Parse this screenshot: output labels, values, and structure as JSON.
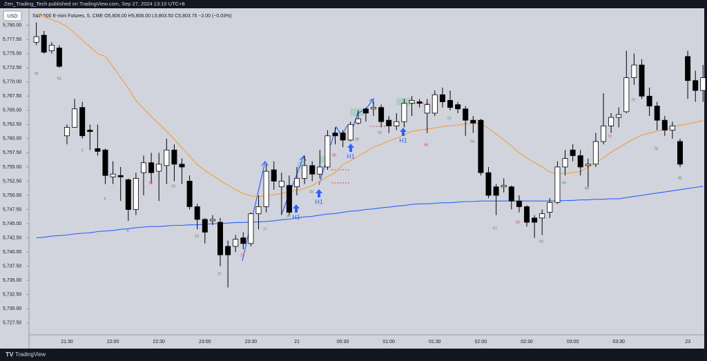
{
  "chart_data": {
    "type": "candlestick",
    "publisher": "Zen_Trading_Tech published on TradingView.com, Sep 27, 2024 13:10 UTC+8",
    "title": "S&P 500 E-mini Futures, 5, CME  O5,806.00 H5,806.00 L5,803.50 C5,803.75 −2.00 (−0.03%)",
    "currency": "USD",
    "brand": "TradingView",
    "up_color": "#ffffff",
    "down_color": "#000000",
    "categories": [
      null,
      null,
      null,
      null,
      "21:30",
      null,
      null,
      null,
      null,
      null,
      "22:00",
      null,
      null,
      null,
      null,
      null,
      "22:30",
      null,
      null,
      null,
      null,
      null,
      "23:00",
      null,
      null,
      null,
      null,
      null,
      "23:30",
      null,
      null,
      null,
      null,
      null,
      "21",
      null,
      null,
      null,
      null,
      null,
      "00:30",
      null,
      null,
      null,
      null,
      null,
      "01:00",
      null,
      null,
      null,
      null,
      null,
      "01:30",
      null,
      null,
      null,
      null,
      null,
      "02:00",
      null,
      null,
      null,
      null,
      null,
      "02:30",
      null,
      null,
      null,
      null,
      null,
      "03:00",
      null,
      null,
      null,
      null,
      null,
      "03:30",
      null,
      null,
      null,
      null,
      null,
      null,
      null,
      null,
      "23",
      null,
      null
    ],
    "open": [
      5777.0,
      5778.25,
      5775.5,
      5776.0,
      5760.5,
      5762.0,
      5765.5,
      5761.5,
      5758.25,
      5758.0,
      5753.25,
      5753.5,
      5752.75,
      5747.5,
      5754.0,
      5755.75,
      5754.25,
      5755.25,
      5758.0,
      5755.5,
      5752.5,
      5748.0,
      5745.75,
      5745.5,
      5745.25,
      5741.0,
      5741.0,
      5742.5,
      5741.5,
      5746.75,
      5748.0,
      5754.5,
      5751.5,
      5751.75,
      5751.5,
      5753.0,
      5755.25,
      5753.75,
      5755.0,
      5761.0,
      5761.0,
      5759.75,
      5762.75,
      5765.25,
      5765.25,
      5765.5,
      5763.25,
      5762.25,
      5763.0,
      5766.25,
      5766.5,
      5764.5,
      5764.5,
      5767.75,
      5766.75,
      5766.0,
      5765.25,
      5763.25,
      5763.25,
      5754.0,
      5751.5,
      5751.5,
      5751.5,
      5749.0,
      5748.0,
      5746.0,
      5746.0,
      5747.0,
      5748.75,
      5755.0,
      5758.0,
      5757.0,
      5755.25,
      5755.5,
      5759.5,
      5762.25,
      5763.75,
      5764.75,
      5770.75,
      5773.0,
      5767.5,
      5765.75,
      5763.25,
      5761.5,
      5759.5,
      5774.5,
      5770.25,
      5768.5
    ],
    "high": [
      5780.5,
      5779.0,
      5777.0,
      5776.5,
      5762.5,
      5767.0,
      5766.5,
      5762.5,
      5762.5,
      5758.25,
      5756.0,
      5755.0,
      5753.0,
      5754.0,
      5757.0,
      5757.5,
      5757.5,
      5760.0,
      5759.0,
      5756.5,
      5753.5,
      5748.5,
      5746.0,
      5746.5,
      5746.0,
      5742.0,
      5743.0,
      5743.5,
      5747.0,
      5750.0,
      5755.5,
      5756.0,
      5754.0,
      5753.5,
      5755.0,
      5757.0,
      5756.0,
      5758.0,
      5761.5,
      5762.0,
      5761.5,
      5763.0,
      5765.0,
      5765.5,
      5766.5,
      5766.0,
      5764.0,
      5764.5,
      5767.0,
      5767.5,
      5767.0,
      5767.0,
      5768.5,
      5769.0,
      5768.5,
      5766.5,
      5765.75,
      5764.0,
      5763.5,
      5755.0,
      5752.0,
      5753.0,
      5751.75,
      5750.0,
      5748.25,
      5746.5,
      5747.5,
      5749.5,
      5756.0,
      5758.0,
      5759.0,
      5758.0,
      5756.5,
      5761.0,
      5768.0,
      5764.5,
      5765.5,
      5775.5,
      5775.0,
      5774.0,
      5769.0,
      5766.5,
      5764.0,
      5763.0,
      5760.0,
      5775.5,
      5772.0,
      5773.0
    ],
    "low": [
      5776.5,
      5775.0,
      5775.0,
      5772.5,
      5759.0,
      5762.0,
      5760.0,
      5758.0,
      5757.0,
      5752.0,
      5752.0,
      5749.0,
      5745.5,
      5746.5,
      5750.0,
      5752.0,
      5749.0,
      5752.0,
      5752.5,
      5752.0,
      5747.5,
      5744.0,
      5741.5,
      5744.75,
      5737.5,
      5733.75,
      5740.0,
      5740.5,
      5741.0,
      5744.0,
      5747.0,
      5751.0,
      5746.5,
      5746.5,
      5750.0,
      5752.0,
      5752.5,
      5753.0,
      5754.5,
      5759.0,
      5758.5,
      5759.5,
      5762.5,
      5763.0,
      5764.0,
      5762.0,
      5761.0,
      5761.5,
      5762.0,
      5764.0,
      5765.5,
      5761.0,
      5764.0,
      5765.5,
      5765.0,
      5764.5,
      5760.5,
      5761.0,
      5753.5,
      5749.5,
      5746.5,
      5750.5,
      5747.5,
      5747.0,
      5744.5,
      5742.5,
      5743.0,
      5746.0,
      5748.5,
      5753.5,
      5756.0,
      5753.5,
      5751.5,
      5755.0,
      5759.0,
      5761.0,
      5762.0,
      5764.5,
      5769.5,
      5767.0,
      5764.0,
      5761.5,
      5760.5,
      5760.0,
      5755.0,
      5767.0,
      5766.5,
      5766.5
    ],
    "close": [
      5778.0,
      5775.25,
      5776.5,
      5772.75,
      5762.0,
      5765.25,
      5760.5,
      5761.25,
      5757.75,
      5753.5,
      5753.75,
      5753.25,
      5747.5,
      5753.0,
      5755.75,
      5754.0,
      5755.5,
      5758.0,
      5755.5,
      5755.0,
      5748.0,
      5745.75,
      5743.5,
      5745.75,
      5739.5,
      5739.5,
      5742.25,
      5741.5,
      5746.75,
      5748.0,
      5754.25,
      5752.5,
      5752.5,
      5747.0,
      5753.0,
      5755.25,
      5753.75,
      5755.0,
      5760.5,
      5760.5,
      5759.75,
      5762.5,
      5763.5,
      5764.5,
      5765.5,
      5763.0,
      5762.25,
      5763.0,
      5766.25,
      5766.75,
      5766.25,
      5766.0,
      5767.75,
      5766.5,
      5765.5,
      5765.25,
      5763.25,
      5762.75,
      5754.0,
      5750.0,
      5750.0,
      5751.75,
      5749.0,
      5748.0,
      5745.25,
      5745.25,
      5746.75,
      5748.75,
      5755.0,
      5756.5,
      5757.0,
      5755.0,
      5755.5,
      5759.5,
      5762.25,
      5763.75,
      5764.25,
      5770.75,
      5773.0,
      5767.5,
      5765.75,
      5763.25,
      5761.5,
      5762.25,
      5755.5,
      5770.25,
      5768.5,
      5770.75
    ],
    "lines": [
      {
        "color": "#f0a030",
        "values": [
          5782.0,
          5781.5,
          5781.0,
          5780.5,
          5779.8,
          5778.6,
          5777.4,
          5776.2,
          5775.0,
          5774.5,
          5772.7,
          5770.8,
          5768.9,
          5766.7,
          5765.3,
          5763.9,
          5762.6,
          5761.3,
          5759.9,
          5758.4,
          5756.9,
          5755.4,
          5754.4,
          5753.5,
          5752.6,
          5751.8,
          5751.0,
          5750.3,
          5749.9,
          5749.8,
          5749.9,
          5750.1,
          5750.3,
          5750.6,
          5750.9,
          5751.2,
          5751.7,
          5752.5,
          5753.3,
          5754.0,
          5755.5,
          5756.1,
          5756.9,
          5757.7,
          5758.5,
          5759.0,
          5759.6,
          5760.1,
          5760.7,
          5761.3,
          5761.5,
          5761.7,
          5761.9,
          5762.1,
          5762.3,
          5762.4,
          5762.6,
          5762.7,
          5762.6,
          5761.8,
          5760.8,
          5759.8,
          5758.7,
          5757.5,
          5756.6,
          5755.8,
          5755.0,
          5754.1,
          5753.8,
          5753.9,
          5754.0,
          5754.2,
          5755.0,
          5755.8,
          5756.6,
          5757.6,
          5758.4,
          5759.2,
          5760.0,
          5760.6,
          5761.0,
          5761.3,
          5761.6,
          5762.0,
          5762.4,
          5762.6,
          5762.9,
          5763.2
        ]
      },
      {
        "color": "#2962ff",
        "values": [
          5742.5,
          5742.6,
          5742.8,
          5742.9,
          5743.0,
          5743.2,
          5743.3,
          5743.4,
          5743.6,
          5743.7,
          5743.8,
          5744.0,
          5744.1,
          5744.3,
          5744.4,
          5744.5,
          5744.5,
          5744.6,
          5744.7,
          5744.7,
          5744.8,
          5744.8,
          5744.9,
          5745.0,
          5745.0,
          5745.1,
          5745.2,
          5745.2,
          5745.3,
          5745.3,
          5745.4,
          5745.5,
          5745.7,
          5745.8,
          5746.0,
          5746.2,
          5746.3,
          5746.5,
          5746.7,
          5746.8,
          5747.0,
          5747.2,
          5747.3,
          5747.5,
          5747.6,
          5747.8,
          5747.9,
          5748.1,
          5748.2,
          5748.4,
          5748.5,
          5748.5,
          5748.6,
          5748.7,
          5748.7,
          5748.8,
          5748.9,
          5748.9,
          5749.0,
          5749.0,
          5749.0,
          5749.0,
          5749.0,
          5749.0,
          5749.0,
          5749.0,
          5749.0,
          5749.0,
          5749.0,
          5749.1,
          5749.1,
          5749.2,
          5749.2,
          5749.3,
          5749.3,
          5749.4,
          5749.4,
          5749.6,
          5749.8,
          5750.0,
          5750.2,
          5750.4,
          5750.6,
          5750.8,
          5751.0,
          5751.2,
          5751.4,
          5751.6
        ]
      }
    ],
    "ylim": [
      5725.4,
      5783.0
    ],
    "yticks": [
      {
        "value": 5727.5,
        "label": "5,727.50"
      },
      {
        "value": 5730,
        "label": "5,730.00"
      },
      {
        "value": 5732.5,
        "label": "5,732.50"
      },
      {
        "value": 5735,
        "label": "5,735.00"
      },
      {
        "value": 5737.5,
        "label": "5,737.50"
      },
      {
        "value": 5740,
        "label": "5,740.00"
      },
      {
        "value": 5742.5,
        "label": "5,742.50"
      },
      {
        "value": 5745,
        "label": "5,745.00"
      },
      {
        "value": 5747.5,
        "label": "5,747.50"
      },
      {
        "value": 5750,
        "label": "5,750.00"
      },
      {
        "value": 5752.5,
        "label": "5,752.50"
      },
      {
        "value": 5755,
        "label": "5,755.00"
      },
      {
        "value": 5757.5,
        "label": "5,757.50"
      },
      {
        "value": 5760,
        "label": "5,760.00"
      },
      {
        "value": 5762.5,
        "label": "5,762.50"
      },
      {
        "value": 5765,
        "label": "5,765.00"
      },
      {
        "value": 5767.5,
        "label": "5,767.50"
      },
      {
        "value": 5770,
        "label": "5,770.00"
      },
      {
        "value": 5772.5,
        "label": "5,772.50"
      },
      {
        "value": 5775,
        "label": "5,775.00"
      },
      {
        "value": 5777.5,
        "label": "5,777.50"
      },
      {
        "value": 5780,
        "label": "5,780.00"
      }
    ],
    "annotations": [
      {
        "text": "78",
        "color": "#3a9a4a"
      },
      {
        "text": "81",
        "color": "#3a9a4a"
      },
      {
        "text": "3",
        "color": "#3a9a4a"
      },
      {
        "text": "6",
        "color": "#3a9a4a"
      },
      {
        "text": "9",
        "color": "#3a9a4a"
      },
      {
        "text": "12",
        "color": "#e04040"
      },
      {
        "text": "15",
        "color": "#3a9a4a"
      },
      {
        "text": "18",
        "color": "#3a9a4a"
      },
      {
        "text": "21",
        "color": "#3a9a4a"
      },
      {
        "text": "24",
        "color": "#e04040"
      },
      {
        "text": "27",
        "color": "#3a9a4a"
      },
      {
        "text": "30",
        "color": "#3a9a4a"
      },
      {
        "text": "33",
        "color": "#3a9a4a"
      },
      {
        "text": "36",
        "color": "#e04040"
      },
      {
        "text": "39",
        "color": "#3a9a4a"
      },
      {
        "text": "42",
        "color": "#3a9a4a"
      },
      {
        "text": "48",
        "color": "#e04040"
      },
      {
        "text": "51",
        "color": "#3a9a4a"
      },
      {
        "text": "54",
        "color": "#3a9a4a"
      },
      {
        "text": "57",
        "color": "#3a9a4a"
      },
      {
        "text": "60",
        "color": "#e04040"
      },
      {
        "text": "63",
        "color": "#3a9a4a"
      },
      {
        "text": "66",
        "color": "#3a9a4a"
      },
      {
        "text": "69",
        "color": "#3a9a4a"
      },
      {
        "text": "72",
        "color": "#e04040"
      },
      {
        "text": "75",
        "color": "#3a9a4a"
      },
      {
        "text": "78",
        "color": "#3a9a4a"
      },
      {
        "text": "81",
        "color": "#3a9a4a"
      },
      {
        "text": "H1",
        "color": "#2962ff"
      },
      {
        "text": "H1",
        "color": "#2962ff"
      },
      {
        "text": "H1",
        "color": "#2962ff"
      },
      {
        "text": "H1",
        "color": "#2962ff"
      }
    ]
  }
}
